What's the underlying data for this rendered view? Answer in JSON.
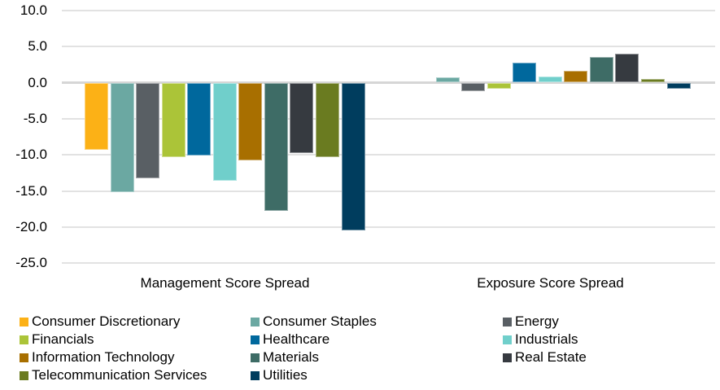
{
  "chart_data": {
    "type": "bar",
    "title": "",
    "categories": [
      "Management Score Spread",
      "Exposure Score Spread"
    ],
    "series": [
      {
        "name": "Consumer Discretionary",
        "color": "#FCB116",
        "values": [
          -9.3,
          0.0
        ]
      },
      {
        "name": "Consumer Staples",
        "color": "#6BA8A2",
        "values": [
          -15.1,
          0.7
        ]
      },
      {
        "name": "Energy",
        "color": "#595F64",
        "values": [
          -13.2,
          -1.2
        ]
      },
      {
        "name": "Financials",
        "color": "#ABC438",
        "values": [
          -10.3,
          -0.9
        ]
      },
      {
        "name": "Healthcare",
        "color": "#00689D",
        "values": [
          -10.1,
          2.8
        ]
      },
      {
        "name": "Industrials",
        "color": "#70CFCB",
        "values": [
          -13.6,
          0.8
        ]
      },
      {
        "name": "Information Technology",
        "color": "#A86F00",
        "values": [
          -10.8,
          1.6
        ]
      },
      {
        "name": "Materials",
        "color": "#3E6C66",
        "values": [
          -17.7,
          3.6
        ]
      },
      {
        "name": "Real Estate",
        "color": "#363A40",
        "values": [
          -9.8,
          4.0
        ]
      },
      {
        "name": "Telecommunication Services",
        "color": "#6A7B20",
        "values": [
          -10.3,
          0.5
        ]
      },
      {
        "name": "Utilities",
        "color": "#003D5E",
        "values": [
          -20.5,
          -0.8
        ]
      }
    ],
    "y_axis": {
      "min": -25.0,
      "max": 10.0,
      "step": 5.0,
      "tick_labels": [
        "10.0",
        "5.0",
        "0.0",
        "-5.0",
        "-10.0",
        "-15.0",
        "-20.0",
        "-25.0"
      ]
    },
    "xlabel": "",
    "ylabel": "",
    "grid": true,
    "legend_position": "bottom",
    "legend_columns": 3,
    "gridline_color": "#E2E2E2",
    "zero_line_color": "#D6D6D6"
  }
}
